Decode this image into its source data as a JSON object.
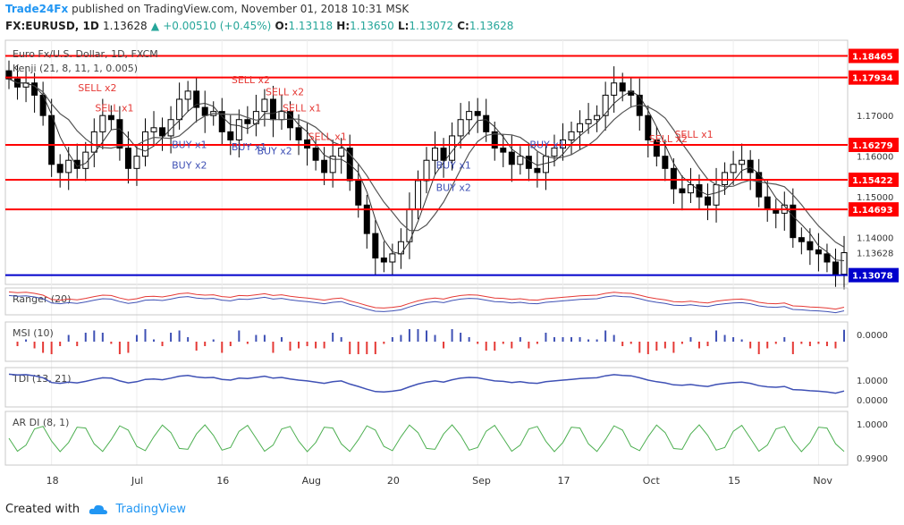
{
  "header": {
    "brand": "Trade24Fx",
    "published": "published on TradingView.com, November 01, 2018 10:31 MSK",
    "symbol": "FX:EURUSD, 1D",
    "last": "1.13628",
    "change": "+0.00510 (+0.45%)",
    "o_label": "O:",
    "o_value": "1.13118",
    "h_label": "H:",
    "h_value": "1.13650",
    "l_label": "L:",
    "l_value": "1.13072",
    "c_label": "C:",
    "c_value": "1.13628"
  },
  "footer": {
    "created_with": "Created with",
    "brand": "TradingView"
  },
  "colors": {
    "up": "#26a69a",
    "down": "#000000",
    "level": "#ff0000",
    "current": "#0000cc",
    "accent": "#2196f3"
  },
  "chart_data": {
    "type": "candlestick",
    "title": "Euro Fx/U.S. Dollar, 1D, FXCM",
    "indicator": "Kenji (21, 8, 11, 1, 0.005)",
    "ylim": [
      1.1285,
      1.1885
    ],
    "y_ticks": [
      1.17,
      1.16,
      1.15,
      1.14,
      1.13628
    ],
    "y_tick_labels": [
      "1.17000",
      "1.16000",
      "1.15000",
      "1.14000",
      "1.13628"
    ],
    "x_tick_labels": [
      "18",
      "Jul",
      "16",
      "Aug",
      "20",
      "Sep",
      "17",
      "Oct",
      "15",
      "Nov"
    ],
    "x_tick_index": [
      5,
      15,
      25,
      35,
      45,
      55,
      65,
      75,
      85,
      95
    ],
    "levels": [
      {
        "value": 1.18465,
        "label": "1.18465"
      },
      {
        "value": 1.17934,
        "label": "1.17934"
      },
      {
        "value": 1.16279,
        "label": "1.16279"
      },
      {
        "value": 1.15422,
        "label": "1.15422"
      },
      {
        "value": 1.14693,
        "label": "1.14693"
      }
    ],
    "current_level": {
      "value": 1.13078,
      "label": "1.13078"
    },
    "closes": [
      1.179,
      1.177,
      1.178,
      1.175,
      1.17,
      1.158,
      1.156,
      1.159,
      1.157,
      1.161,
      1.166,
      1.17,
      1.169,
      1.162,
      1.157,
      1.16,
      1.166,
      1.167,
      1.165,
      1.169,
      1.174,
      1.176,
      1.172,
      1.17,
      1.171,
      1.166,
      1.164,
      1.169,
      1.168,
      1.171,
      1.174,
      1.169,
      1.171,
      1.167,
      1.164,
      1.162,
      1.159,
      1.156,
      1.16,
      1.162,
      1.154,
      1.148,
      1.141,
      1.135,
      1.134,
      1.136,
      1.139,
      1.147,
      1.154,
      1.159,
      1.162,
      1.159,
      1.165,
      1.169,
      1.171,
      1.17,
      1.166,
      1.162,
      1.161,
      1.158,
      1.16,
      1.157,
      1.156,
      1.16,
      1.162,
      1.164,
      1.166,
      1.168,
      1.169,
      1.17,
      1.175,
      1.178,
      1.176,
      1.175,
      1.17,
      1.164,
      1.16,
      1.157,
      1.152,
      1.151,
      1.153,
      1.15,
      1.148,
      1.153,
      1.156,
      1.158,
      1.159,
      1.156,
      1.15,
      1.147,
      1.146,
      1.148,
      1.14,
      1.139,
      1.137,
      1.136,
      1.134,
      1.131,
      1.1363
    ],
    "signals": [
      {
        "text": "SELL x2",
        "index": 10,
        "value": 1.176,
        "side": "sell"
      },
      {
        "text": "SELL x1",
        "index": 12,
        "value": 1.171,
        "side": "sell"
      },
      {
        "text": "BUY x1",
        "index": 21,
        "value": 1.162,
        "side": "buy"
      },
      {
        "text": "BUY x2",
        "index": 21,
        "value": 1.157,
        "side": "buy"
      },
      {
        "text": "SELL x2",
        "index": 28,
        "value": 1.178,
        "side": "sell"
      },
      {
        "text": "BUY x1",
        "index": 28,
        "value": 1.1615,
        "side": "buy"
      },
      {
        "text": "SELL x2",
        "index": 32,
        "value": 1.175,
        "side": "sell"
      },
      {
        "text": "SELL x1",
        "index": 34,
        "value": 1.171,
        "side": "sell"
      },
      {
        "text": "BUY x2",
        "index": 31,
        "value": 1.1605,
        "side": "buy"
      },
      {
        "text": "SELL x1",
        "index": 37,
        "value": 1.164,
        "side": "sell"
      },
      {
        "text": "BUY x1",
        "index": 52,
        "value": 1.157,
        "side": "buy"
      },
      {
        "text": "BUY x2",
        "index": 52,
        "value": 1.1515,
        "side": "buy"
      },
      {
        "text": "BUY x1",
        "index": 63,
        "value": 1.162,
        "side": "buy"
      },
      {
        "text": "SELL x2",
        "index": 77,
        "value": 1.1635,
        "side": "sell"
      },
      {
        "text": "SELL x1",
        "index": 80,
        "value": 1.1645,
        "side": "sell"
      }
    ],
    "panels": [
      {
        "name": "Ranger (20)"
      },
      {
        "name": "MSI (10)",
        "tick_labels": [
          "0.0000"
        ]
      },
      {
        "name": "TDI (13, 21)",
        "tick_labels": [
          "1.0000",
          "0.0000"
        ]
      },
      {
        "name": "AR DI (8, 1)",
        "tick_labels": [
          "1.0000",
          "0.9900"
        ]
      }
    ]
  }
}
